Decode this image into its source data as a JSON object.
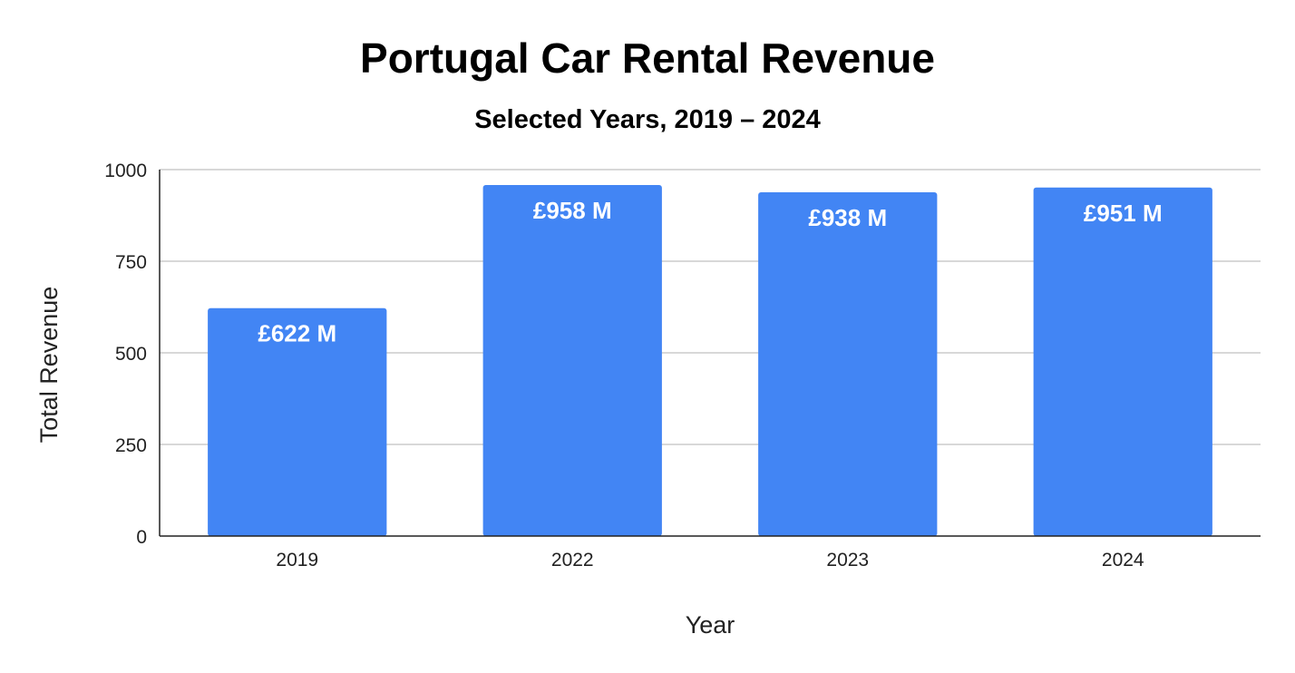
{
  "chart_data": {
    "type": "bar",
    "title": "Portugal Car Rental Revenue",
    "subtitle": "Selected Years, 2019 – 2024",
    "xlabel": "Year",
    "ylabel": "Total Revenue",
    "categories": [
      "2019",
      "2022",
      "2023",
      "2024"
    ],
    "values": [
      622,
      958,
      938,
      951
    ],
    "data_labels": [
      "£622 M",
      "£958 M",
      "£938 M",
      "£951 M"
    ],
    "ylim": [
      0,
      1000
    ],
    "yticks": [
      0,
      250,
      500,
      750,
      1000
    ],
    "ytick_labels": [
      "0",
      "250",
      "500",
      "750",
      "1000"
    ],
    "grid": true,
    "legend": "none",
    "bar_color": "#4285f4"
  }
}
